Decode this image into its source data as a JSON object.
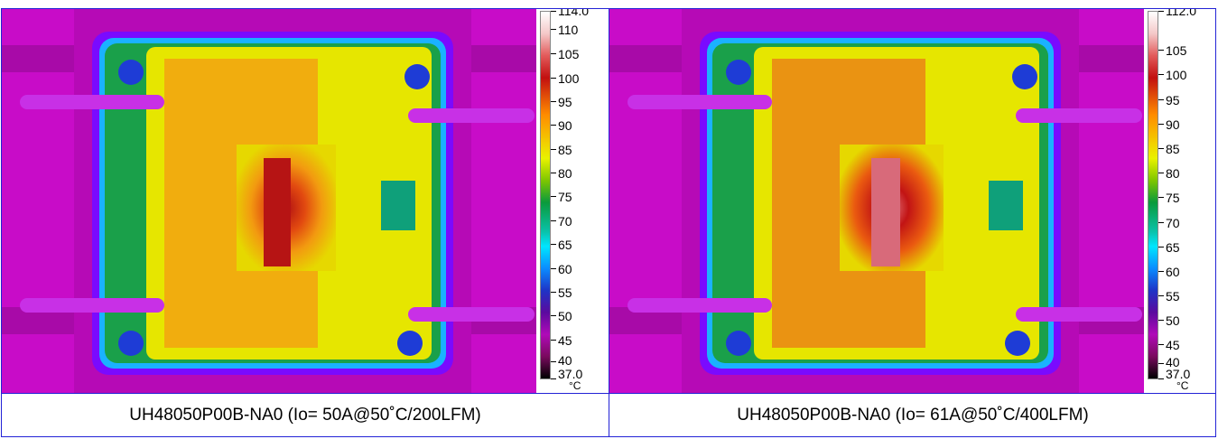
{
  "panels": [
    {
      "caption": "UH48050P00B-NA0 (Io= 50A@50˚C/200LFM)",
      "scale": {
        "max": "114.0",
        "min": "37.0",
        "unit": "°C",
        "ticks": [
          "110",
          "105",
          "100",
          "95",
          "90",
          "85",
          "80",
          "75",
          "70",
          "65",
          "60",
          "55",
          "50",
          "45",
          "40"
        ]
      }
    },
    {
      "caption": "UH48050P00B-NA0 (Io= 61A@50˚C/400LFM)",
      "scale": {
        "max": "112.0",
        "min": "37.0",
        "unit": "°C",
        "ticks": [
          "105",
          "100",
          "95",
          "90",
          "85",
          "80",
          "75",
          "70",
          "65",
          "60",
          "55",
          "50",
          "45",
          "40"
        ]
      }
    }
  ],
  "colors": {
    "frame": "#2323d6",
    "background_magenta": "#d60ad6",
    "board_yellow": "#e6e600",
    "hot_red": "#c21010"
  }
}
